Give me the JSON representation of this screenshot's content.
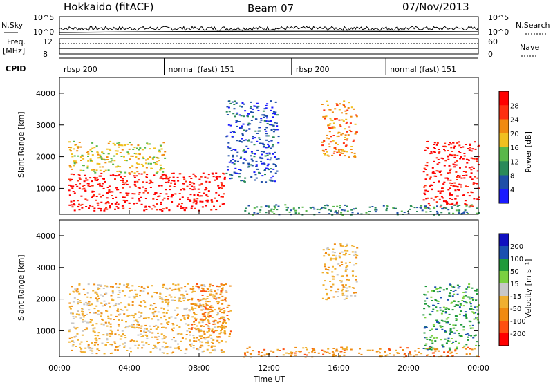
{
  "header": {
    "station": "Hokkaido (fitACF)",
    "beam": "Beam 07",
    "date": "07/Nov/2013"
  },
  "panels": {
    "nsky": {
      "label": "N.Sky",
      "right_label": "N.Search",
      "ticks": [
        "10^5",
        "10^0"
      ]
    },
    "freq": {
      "label_line1": "Freq.",
      "label_line2": "[MHz]",
      "right_label": "Nave",
      "left_ticks": [
        "12",
        "8"
      ],
      "right_ticks": [
        "60",
        "0"
      ]
    },
    "cpid": {
      "label": "CPID",
      "segments": [
        {
          "label": "rbsp 200",
          "start": 0.0
        },
        {
          "label": "normal (fast) 151",
          "start": 6.0
        },
        {
          "label": "rbsp 200",
          "start": 13.3
        },
        {
          "label": "normal (fast) 151",
          "start": 18.7
        }
      ]
    }
  },
  "chart_data": [
    {
      "type": "heatmap",
      "title": "",
      "xlabel": "Time UT",
      "ylabel": "Slant Range [km]",
      "xlim": [
        0,
        24
      ],
      "ylim": [
        180,
        4500
      ],
      "x_ticks": [
        "00:00",
        "04:00",
        "08:00",
        "12:00",
        "16:00",
        "20:00",
        "00:00"
      ],
      "y_ticks": [
        1000,
        2000,
        3000,
        4000
      ],
      "colorbar": {
        "label": "Power [dB]",
        "ticks": [
          "28",
          "24",
          "20",
          "16",
          "12",
          "8",
          "4"
        ],
        "colors": [
          "#1a1aff",
          "#1f4fa8",
          "#2a8a5a",
          "#59b84a",
          "#f0c020",
          "#f08a10",
          "#ff3010",
          "#ff0000"
        ]
      },
      "echo_regions": [
        {
          "t0": 0.5,
          "t1": 9.5,
          "r0": 300,
          "r1": 1500,
          "level": "28"
        },
        {
          "t0": 0.5,
          "t1": 6.0,
          "r0": 1500,
          "r1": 2500,
          "level": "16"
        },
        {
          "t0": 9.5,
          "t1": 12.5,
          "r0": 1200,
          "r1": 3800,
          "level": "8"
        },
        {
          "t0": 15.0,
          "t1": 17.0,
          "r0": 2000,
          "r1": 3800,
          "level": "20"
        },
        {
          "t0": 20.8,
          "t1": 24.0,
          "r0": 400,
          "r1": 2500,
          "level": "28"
        },
        {
          "t0": 10.5,
          "t1": 24.0,
          "r0": 180,
          "r1": 500,
          "level": "12"
        }
      ]
    },
    {
      "type": "heatmap",
      "title": "",
      "xlabel": "Time UT",
      "ylabel": "Slant Range [km]",
      "xlim": [
        0,
        24
      ],
      "ylim": [
        180,
        4500
      ],
      "x_ticks": [
        "00:00",
        "04:00",
        "08:00",
        "12:00",
        "16:00",
        "20:00",
        "00:00"
      ],
      "y_ticks": [
        1000,
        2000,
        3000,
        4000
      ],
      "colorbar": {
        "label": "Velocity [m s⁻¹]",
        "ticks": [
          "200",
          "100",
          "50",
          "15",
          "-15",
          "-50",
          "-100",
          "-200"
        ],
        "colors": [
          "#ff0000",
          "#ff5010",
          "#f08a10",
          "#f0b030",
          "#c8c8c8",
          "#7ad040",
          "#1f9a3a",
          "#1a50b0",
          "#1010c0"
        ]
      },
      "echo_regions": [
        {
          "t0": 0.5,
          "t1": 9.5,
          "r0": 300,
          "r1": 2500,
          "level": "-15"
        },
        {
          "t0": 7.5,
          "t1": 9.8,
          "r0": 800,
          "r1": 2500,
          "level": "-50"
        },
        {
          "t0": 15.0,
          "t1": 17.0,
          "r0": 2000,
          "r1": 3800,
          "level": "-15"
        },
        {
          "t0": 20.8,
          "t1": 24.0,
          "r0": 400,
          "r1": 2500,
          "level": "50"
        },
        {
          "t0": 10.5,
          "t1": 24.0,
          "r0": 180,
          "r1": 500,
          "level": "-50"
        }
      ]
    }
  ]
}
